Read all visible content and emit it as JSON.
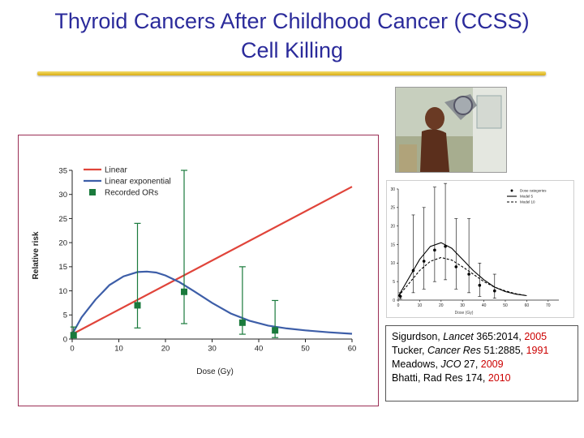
{
  "slide": {
    "title_line1": "Thyroid Cancers After Childhood Cancer (CCSS)",
    "title_line2": "Cell Killing"
  },
  "chart_data": [
    {
      "type": "line",
      "xlabel": "Dose (Gy)",
      "ylabel": "Relative risk",
      "xlim": [
        0,
        60
      ],
      "ylim": [
        0,
        35
      ],
      "xticks": [
        0,
        10,
        20,
        30,
        40,
        50,
        60
      ],
      "yticks": [
        0,
        5,
        10,
        15,
        20,
        25,
        30,
        35
      ],
      "legend_position": "top-left",
      "grid": false,
      "series": [
        {
          "name": "Linear",
          "kind": "line",
          "color": "#e0443a",
          "x": [
            0,
            60
          ],
          "y": [
            1,
            31.6
          ]
        },
        {
          "name": "Linear exponential",
          "kind": "line",
          "color": "#3d5ea8",
          "x": [
            0,
            2,
            5,
            8,
            11,
            14,
            16,
            18,
            20,
            23,
            26,
            30,
            34,
            38,
            42,
            46,
            50,
            55,
            60
          ],
          "y": [
            1,
            4.5,
            8.2,
            11.2,
            13.0,
            13.9,
            14.0,
            13.8,
            13.2,
            11.8,
            10.0,
            7.5,
            5.3,
            3.8,
            2.8,
            2.2,
            1.8,
            1.4,
            1.1
          ]
        },
        {
          "name": "Recorded ORs",
          "kind": "scatter_errorbar",
          "color": "#1a7a3c",
          "x": [
            0.3,
            14,
            24,
            36.5,
            43.5
          ],
          "y": [
            0.8,
            7.0,
            9.8,
            3.4,
            1.8
          ],
          "lower": [
            0.3,
            2.3,
            3.2,
            1.0,
            0.3
          ],
          "upper": [
            2.5,
            24,
            35,
            15,
            8
          ]
        }
      ]
    },
    {
      "type": "line",
      "xlabel": "Dose (Gy)",
      "ylabel": "",
      "xlim": [
        0,
        75
      ],
      "ylim": [
        0,
        30
      ],
      "xticks": [
        0,
        10,
        20,
        30,
        40,
        50,
        60,
        70
      ],
      "yticks": [
        0,
        5,
        10,
        15,
        20,
        25,
        30
      ],
      "legend_position": "top-right",
      "series": [
        {
          "name": "Dose categories",
          "kind": "scatter_errorbar",
          "color": "#000000",
          "x": [
            1,
            7,
            12,
            17,
            22,
            27,
            33,
            38,
            45
          ],
          "y": [
            1,
            8,
            10.5,
            13.5,
            14.5,
            9,
            7,
            4,
            2.5
          ],
          "lower": [
            0.3,
            2,
            3,
            5,
            5.5,
            3,
            2,
            1,
            0.5
          ],
          "upper": [
            2,
            23,
            25,
            30.5,
            31.5,
            22,
            22,
            10,
            7
          ]
        },
        {
          "name": "Model 5",
          "kind": "line",
          "color": "#000000",
          "x": [
            0,
            5,
            10,
            15,
            20,
            25,
            30,
            35,
            40,
            45,
            50,
            55,
            60
          ],
          "y": [
            1,
            6,
            11,
            14.5,
            15.5,
            14,
            11,
            8,
            5.5,
            3.5,
            2.3,
            1.6,
            1.2
          ]
        },
        {
          "name": "Model 10",
          "kind": "dashed_line",
          "color": "#000000",
          "x": [
            0,
            5,
            10,
            15,
            20,
            25,
            30,
            35,
            40,
            45,
            50,
            55,
            60
          ],
          "y": [
            1,
            4.5,
            8,
            10.5,
            11.5,
            10.8,
            9,
            7,
            5,
            3.5,
            2.5,
            1.7,
            1.2
          ]
        }
      ]
    }
  ],
  "references": [
    {
      "author": "Sigurdson, ",
      "journal": "Lancet",
      "detail": " 365:2014, ",
      "year": "2005"
    },
    {
      "author": "Tucker, ",
      "journal": "Cancer Res",
      "detail": " 51:2885, ",
      "year": "1991"
    },
    {
      "author": "Meadows, ",
      "journal": "JCO",
      "detail": " 27, ",
      "year": "2009"
    },
    {
      "author": "Bhatti, Rad Res 174, ",
      "journal": "",
      "detail": "",
      "year": "2010"
    }
  ]
}
